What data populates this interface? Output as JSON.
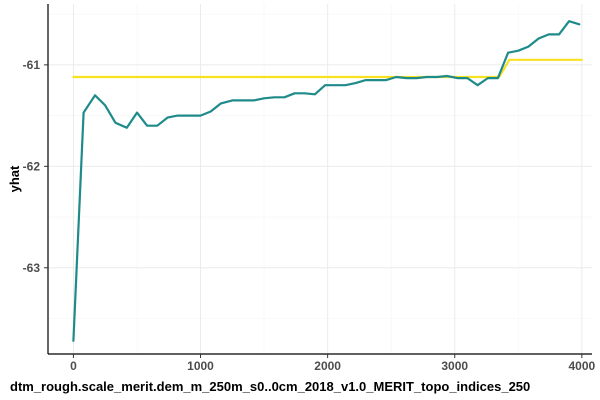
{
  "chart_data": {
    "type": "line",
    "xlabel": "dtm_rough.scale_merit.dem_m_250m_s0..0cm_2018_v1.0_MERIT_topo_indices_250",
    "ylabel": "yhat",
    "xlim": [
      -200,
      4080
    ],
    "ylim": [
      -63.85,
      -60.4
    ],
    "x_ticks": [
      0,
      1000,
      2000,
      3000,
      4000
    ],
    "y_ticks": [
      -61,
      -62,
      -63
    ],
    "grid": true,
    "colors": {
      "teal": "#1f8a8a",
      "yellow": "#f7e120",
      "axis": "#000000",
      "grid": "#ebebeb"
    },
    "series": [
      {
        "color": "#f7e120",
        "x": [
          0,
          3350,
          3430,
          4000
        ],
        "y": [
          -61.12,
          -61.12,
          -60.95,
          -60.95
        ]
      },
      {
        "color": "#1f8a8a",
        "x": [
          0,
          80,
          170,
          250,
          330,
          420,
          500,
          580,
          660,
          740,
          820,
          900,
          1000,
          1080,
          1160,
          1250,
          1330,
          1420,
          1500,
          1580,
          1660,
          1740,
          1820,
          1900,
          1980,
          2060,
          2140,
          2220,
          2300,
          2380,
          2460,
          2540,
          2620,
          2700,
          2780,
          2860,
          2940,
          3020,
          3100,
          3180,
          3260,
          3340,
          3420,
          3500,
          3580,
          3660,
          3740,
          3820,
          3900,
          3980
        ],
        "y": [
          -63.72,
          -61.47,
          -61.3,
          -61.4,
          -61.57,
          -61.62,
          -61.47,
          -61.6,
          -61.6,
          -61.52,
          -61.5,
          -61.5,
          -61.5,
          -61.46,
          -61.38,
          -61.35,
          -61.35,
          -61.35,
          -61.33,
          -61.32,
          -61.32,
          -61.28,
          -61.28,
          -61.29,
          -61.2,
          -61.2,
          -61.2,
          -61.18,
          -61.15,
          -61.15,
          -61.15,
          -61.12,
          -61.13,
          -61.13,
          -61.12,
          -61.12,
          -61.11,
          -61.13,
          -61.13,
          -61.2,
          -61.13,
          -61.13,
          -60.88,
          -60.86,
          -60.82,
          -60.74,
          -60.7,
          -60.7,
          -60.57,
          -60.6
        ]
      }
    ]
  }
}
